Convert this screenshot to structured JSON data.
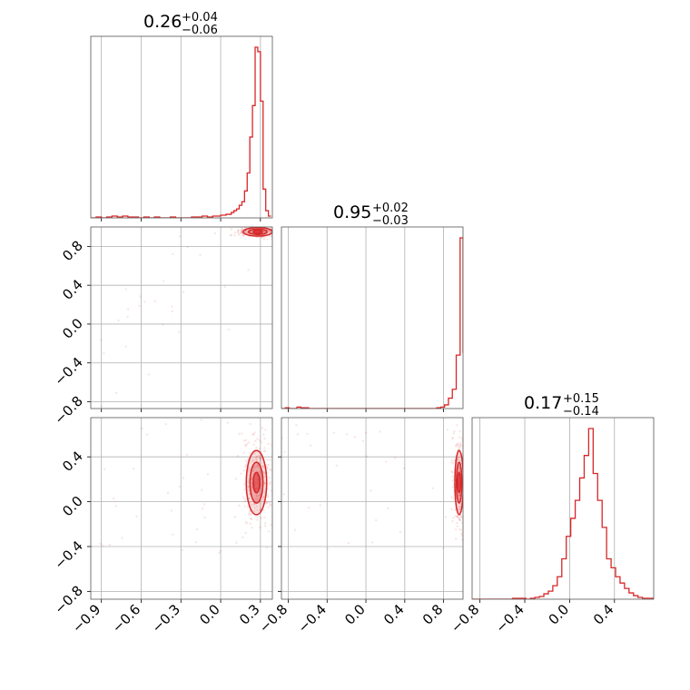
{
  "accent_color": "#d62728",
  "chart_data": {
    "type": "corner",
    "parameters": 3,
    "ticks": {
      "param0": [
        "−0.9",
        "−0.6",
        "−0.3",
        "0.0",
        "0.3"
      ],
      "param1": [
        "−0.8",
        "−0.4",
        "0.0",
        "0.4",
        "0.8"
      ],
      "param2": [
        "−0.8",
        "−0.4",
        "0.0",
        "0.4"
      ],
      "param0_values": [
        -0.9,
        -0.6,
        -0.3,
        0.0,
        0.3
      ],
      "param1_values": [
        -0.8,
        -0.4,
        0.0,
        0.4,
        0.8
      ],
      "param2_values": [
        -0.8,
        -0.4,
        0.0,
        0.4
      ]
    },
    "ranges": {
      "param0": [
        -0.98,
        0.39
      ],
      "param1": [
        -0.87,
        1.0
      ],
      "param2": [
        -0.87,
        0.75
      ]
    },
    "grid": true,
    "summaries": [
      {
        "median": "0.26",
        "plus": "+0.04",
        "minus": "−0.06"
      },
      {
        "median": "0.95",
        "plus": "+0.02",
        "minus": "−0.03"
      },
      {
        "median": "0.17",
        "plus": "+0.15",
        "minus": "−0.14"
      }
    ],
    "histograms": [
      {
        "param": 0,
        "bin_edges": [
          -0.98,
          -0.94,
          -0.9,
          -0.86,
          -0.82,
          -0.78,
          -0.74,
          -0.7,
          -0.66,
          -0.62,
          -0.58,
          -0.54,
          -0.5,
          -0.46,
          -0.42,
          -0.38,
          -0.34,
          -0.3,
          -0.26,
          -0.22,
          -0.18,
          -0.14,
          -0.1,
          -0.06,
          -0.02,
          0.0,
          0.02,
          0.04,
          0.06,
          0.08,
          0.1,
          0.12,
          0.14,
          0.16,
          0.18,
          0.2,
          0.22,
          0.24,
          0.26,
          0.28,
          0.3,
          0.32,
          0.34,
          0.36,
          0.38
        ],
        "counts": [
          0,
          1,
          0,
          1,
          2,
          1,
          2,
          1,
          1,
          0,
          1,
          0,
          1,
          0,
          0,
          1,
          0,
          0,
          0,
          1,
          1,
          2,
          1,
          2,
          2,
          3,
          3,
          4,
          4,
          6,
          8,
          10,
          14,
          18,
          30,
          50,
          90,
          125,
          190,
          185,
          130,
          32,
          8,
          2
        ]
      },
      {
        "param": 1,
        "bin_edges": [
          -0.87,
          -0.83,
          -0.79,
          -0.75,
          -0.71,
          -0.67,
          -0.63,
          -0.59,
          -0.55,
          -0.51,
          -0.47,
          -0.43,
          -0.39,
          -0.35,
          -0.31,
          -0.27,
          -0.23,
          -0.19,
          -0.15,
          -0.11,
          -0.07,
          -0.03,
          0.01,
          0.05,
          0.09,
          0.13,
          0.17,
          0.21,
          0.25,
          0.29,
          0.33,
          0.37,
          0.41,
          0.45,
          0.49,
          0.53,
          0.57,
          0.61,
          0.65,
          0.69,
          0.73,
          0.77,
          0.81,
          0.85,
          0.89,
          0.93,
          0.97,
          1.0
        ],
        "counts": [
          0,
          1,
          0,
          0,
          2,
          1,
          1,
          0,
          0,
          0,
          0,
          0,
          0,
          0,
          0,
          0,
          0,
          0,
          0,
          0,
          0,
          0,
          0,
          0,
          0,
          0,
          0,
          0,
          0,
          0,
          0,
          0,
          0,
          0,
          0,
          0,
          0,
          0,
          0,
          0,
          1,
          2,
          5,
          14,
          26,
          72,
          230,
          75
        ]
      },
      {
        "param": 2,
        "bin_edges": [
          -0.87,
          -0.83,
          -0.79,
          -0.75,
          -0.71,
          -0.67,
          -0.63,
          -0.59,
          -0.55,
          -0.51,
          -0.47,
          -0.43,
          -0.39,
          -0.35,
          -0.31,
          -0.27,
          -0.23,
          -0.19,
          -0.15,
          -0.11,
          -0.07,
          -0.03,
          0.01,
          0.05,
          0.09,
          0.13,
          0.17,
          0.21,
          0.25,
          0.29,
          0.33,
          0.37,
          0.41,
          0.45,
          0.49,
          0.53,
          0.57,
          0.61,
          0.65,
          0.69,
          0.73,
          0.75
        ],
        "counts": [
          0,
          0,
          0,
          0,
          0,
          0,
          0,
          0,
          0,
          1,
          1,
          1,
          0,
          1,
          2,
          3,
          6,
          9,
          15,
          25,
          45,
          70,
          90,
          110,
          135,
          160,
          190,
          140,
          110,
          80,
          45,
          35,
          25,
          18,
          12,
          7,
          4,
          2,
          1,
          1,
          1
        ]
      }
    ],
    "pairs": [
      {
        "x_param": 0,
        "y_param": 1,
        "center": [
          0.28,
          0.95
        ],
        "spread": [
          0.05,
          0.02
        ]
      },
      {
        "x_param": 0,
        "y_param": 2,
        "center": [
          0.27,
          0.17
        ],
        "spread": [
          0.035,
          0.13
        ]
      },
      {
        "x_param": 1,
        "y_param": 2,
        "center": [
          0.96,
          0.17
        ],
        "spread": [
          0.02,
          0.13
        ]
      }
    ]
  }
}
